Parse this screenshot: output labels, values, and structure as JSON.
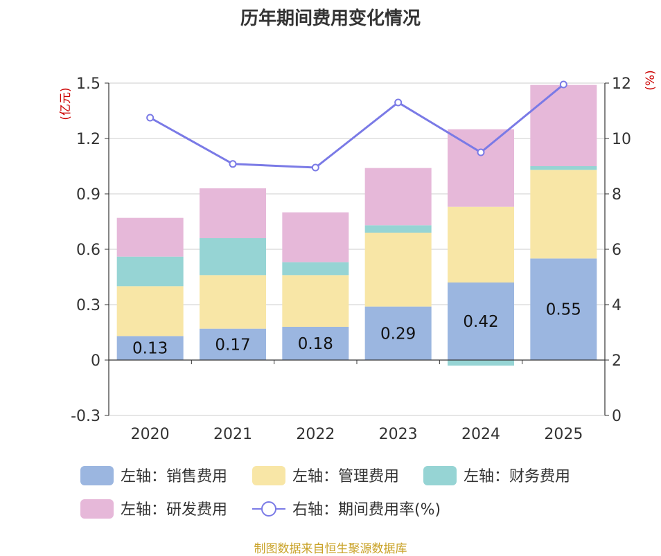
{
  "title": "历年期间费用变化情况",
  "source": "制图数据来自恒生聚源数据库",
  "colors": {
    "sales": "#9bb6e0",
    "admin": "#f8e6a6",
    "finance": "#96d4d4",
    "rnd": "#e6b8d9",
    "rate": "#7a7ae6",
    "axis": "#333333",
    "grid": "#cccccc",
    "unit": "#cc0000"
  },
  "chart_data": {
    "type": "bar",
    "stacked": true,
    "categories": [
      "2020",
      "2021",
      "2022",
      "2023",
      "2024",
      "2025"
    ],
    "series": [
      {
        "name": "左轴：销售费用",
        "key": "sales",
        "axis": "left",
        "values": [
          0.13,
          0.17,
          0.18,
          0.29,
          0.42,
          0.55
        ],
        "labels": [
          "0.13",
          "0.17",
          "0.18",
          "0.29",
          "0.42",
          "0.55"
        ]
      },
      {
        "name": "左轴：管理费用",
        "key": "admin",
        "axis": "left",
        "values": [
          0.27,
          0.29,
          0.28,
          0.4,
          0.41,
          0.48
        ]
      },
      {
        "name": "左轴：财务费用",
        "key": "finance",
        "axis": "left",
        "values": [
          0.16,
          0.2,
          0.07,
          0.04,
          -0.03,
          0.02
        ]
      },
      {
        "name": "左轴：研发费用",
        "key": "rnd",
        "axis": "left",
        "values": [
          0.21,
          0.27,
          0.27,
          0.31,
          0.42,
          0.44
        ]
      },
      {
        "name": "右轴：期间费用率(%)",
        "key": "rate",
        "axis": "right",
        "type": "line",
        "values": [
          10.75,
          9.08,
          8.95,
          11.3,
          9.5,
          11.95
        ]
      }
    ],
    "left_axis": {
      "unit": "(亿元)",
      "min": -0.3,
      "max": 1.5,
      "ticks": [
        "-0.3",
        "0",
        "0.3",
        "0.6",
        "0.9",
        "1.2",
        "1.5"
      ]
    },
    "right_axis": {
      "unit": "(%)",
      "min": 0,
      "max": 12,
      "ticks": [
        "0",
        "2",
        "4",
        "6",
        "8",
        "10",
        "12"
      ]
    },
    "legend": [
      [
        "左轴：销售费用",
        "左轴：管理费用",
        "左轴：财务费用"
      ],
      [
        "左轴：研发费用",
        "右轴：期间费用率(%)"
      ]
    ],
    "legend_position": "bottom"
  }
}
